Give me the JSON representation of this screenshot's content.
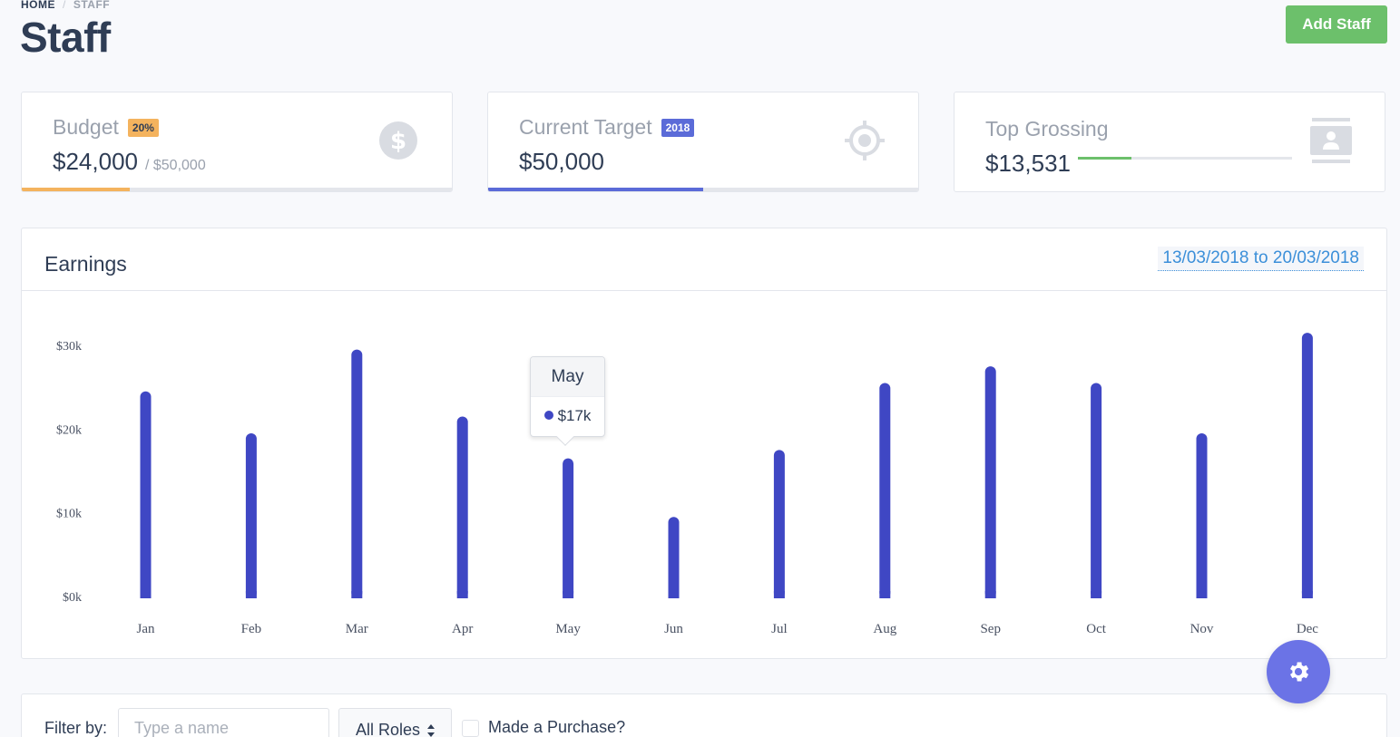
{
  "breadcrumb": {
    "home": "HOME",
    "separator": "/",
    "current": "STAFF"
  },
  "page_title": "Staff",
  "add_staff_label": "Add Staff",
  "cards": {
    "budget": {
      "title": "Budget",
      "badge": "20%",
      "value": "$24,000",
      "of": "/ $50,000",
      "progress": 0.25,
      "icon": "dollar-icon",
      "color": "#f4b35e"
    },
    "target": {
      "title": "Current Target",
      "badge": "2018",
      "value": "$50,000",
      "progress": 0.5,
      "icon": "target-icon",
      "color": "#5b6bd8"
    },
    "grossing": {
      "title": "Top Grossing",
      "value": "$13,531",
      "progress": 0.25,
      "icon": "contact-card-icon",
      "color": "#6cc06b"
    }
  },
  "earnings": {
    "title": "Earnings",
    "date_range": "13/03/2018 to 20/03/2018"
  },
  "chart_data": {
    "type": "bar",
    "categories": [
      "Jan",
      "Feb",
      "Mar",
      "Apr",
      "May",
      "Jun",
      "Jul",
      "Aug",
      "Sep",
      "Oct",
      "Nov",
      "Dec"
    ],
    "values": [
      24.5,
      19.5,
      29.5,
      21.5,
      16.5,
      9.5,
      17.5,
      25.5,
      27.5,
      25.5,
      19.5,
      31.5
    ],
    "y_ticks": [
      "$0k",
      "$10k",
      "$20k",
      "$30k"
    ],
    "ylim": [
      0,
      30
    ],
    "unit": "thousand USD",
    "bar_color": "#3f47c4",
    "tooltip": {
      "category": "May",
      "label": "$17k"
    }
  },
  "fab": {
    "icon": "gear-icon"
  },
  "filter": {
    "label": "Filter by:",
    "name_placeholder": "Type a name",
    "role_select": "All Roles",
    "purchase_label": "Made a Purchase?"
  }
}
